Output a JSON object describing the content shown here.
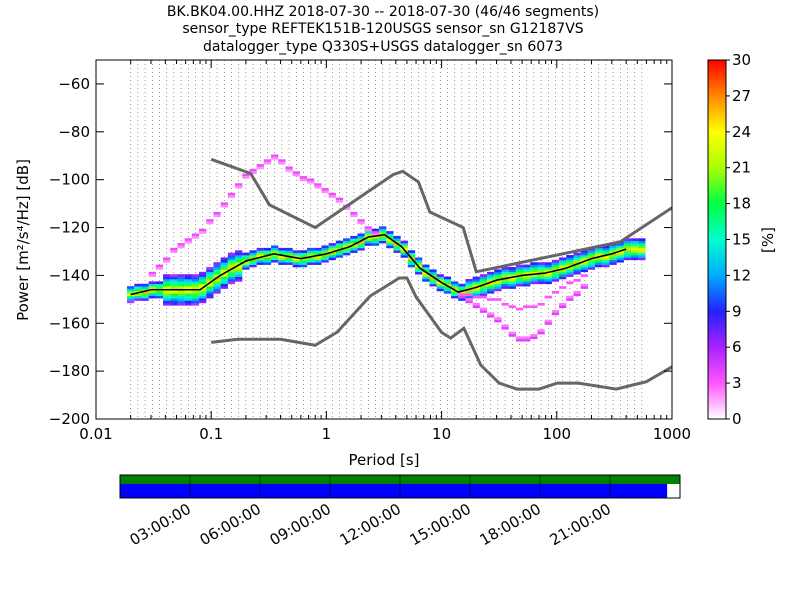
{
  "title_lines": [
    "BK.BK04.00.HHZ   2018-07-30 -- 2018-07-30  (46/46 segments)",
    "sensor_type REFTEK151B-120USGS sensor_sn G12187VS",
    "datalogger_type Q330S+USGS datalogger_sn 6073"
  ],
  "chart_data": [
    {
      "type": "heatmap",
      "subtype": "probabilistic power spectral density",
      "xlabel": "Period [s]",
      "ylabel": "Power [m²/s⁴/Hz] [dB]",
      "x_scale": "log",
      "xlim": [
        0.01,
        1000
      ],
      "ylim": [
        -200,
        -50
      ],
      "grid": "dotted vertical lines at each period bin",
      "x_tick_labels": [
        "0.01",
        "0.1",
        "1",
        "10",
        "100",
        "1000"
      ],
      "x_tick_values": [
        0.01,
        0.1,
        1,
        10,
        100,
        1000
      ],
      "y_tick_values": [
        -200,
        -180,
        -160,
        -140,
        -120,
        -100,
        -80,
        -60
      ],
      "y_tick_labels": [
        "−200",
        "−180",
        "−160",
        "−140",
        "−120",
        "−100",
        "−80",
        "−60"
      ],
      "colorbar": {
        "label": "[%]",
        "range": [
          0,
          30
        ],
        "ticks": [
          0,
          3,
          6,
          9,
          12,
          15,
          18,
          21,
          24,
          27,
          30
        ],
        "colormap": [
          "#ffffff",
          "#ff55ff",
          "#aa22ff",
          "#2222ff",
          "#00aaff",
          "#00ffcc",
          "#00ff44",
          "#aaff00",
          "#ffff00",
          "#ff8800",
          "#ff0000"
        ]
      },
      "noise_models": {
        "color": "#666666",
        "high": {
          "x": [
            0.1,
            0.22,
            0.32,
            0.8,
            3.8,
            4.6,
            6.3,
            7.9,
            15.4,
            20,
            354.8,
            10000
          ],
          "y": [
            -91.5,
            -97.4,
            -110.5,
            -120.0,
            -97.9,
            -96.5,
            -101.0,
            -113.5,
            -120.0,
            -138.5,
            -126.0,
            -80.1
          ]
        },
        "low": {
          "x": [
            0.1,
            0.17,
            0.4,
            0.8,
            1.24,
            2.4,
            4.3,
            5.0,
            6.0,
            10.0,
            12.0,
            15.6,
            21.9,
            31.6,
            45.0,
            70.0,
            101.0,
            154.0,
            328.0,
            600.0,
            1000.0
          ],
          "y": [
            -168.0,
            -166.7,
            -166.7,
            -169.2,
            -163.7,
            -148.6,
            -141.1,
            -141.1,
            -149.0,
            -163.8,
            -166.2,
            -162.1,
            -177.5,
            -185.0,
            -187.5,
            -187.5,
            -185.0,
            -185.0,
            -187.5,
            -184.4,
            -178.2
          ]
        }
      },
      "mode_line": {
        "color": "#000000",
        "x": [
          0.02,
          0.03,
          0.05,
          0.08,
          0.12,
          0.2,
          0.35,
          0.6,
          1.0,
          1.6,
          2.3,
          3.2,
          4.5,
          6.5,
          10,
          14,
          20,
          30,
          50,
          80,
          120,
          200,
          300,
          400
        ],
        "y": [
          -148,
          -146,
          -146,
          -146,
          -140,
          -134,
          -131,
          -133,
          -131,
          -128,
          -124,
          -123,
          -128,
          -137,
          -143,
          -147,
          -145,
          -142,
          -140,
          -139,
          -137,
          -133,
          -131,
          -129
        ]
      },
      "upper_branch": {
        "x": [
          0.03,
          0.05,
          0.08,
          0.12,
          0.2,
          0.35,
          0.6,
          1.0,
          1.6,
          2.3,
          3.0
        ],
        "y": [
          -140,
          -128,
          -122,
          -112,
          -98,
          -90,
          -98,
          -104,
          -112,
          -120,
          -123
        ]
      },
      "lower_branch": {
        "x": [
          14,
          20,
          30,
          40,
          50,
          70,
          100,
          150,
          200
        ],
        "y": [
          -148,
          -153,
          -158,
          -165,
          -168,
          -165,
          -155,
          -148,
          -142
        ]
      }
    },
    {
      "type": "timeline",
      "description": "data availability bar",
      "tick_labels": [
        "03:00:00",
        "06:00:00",
        "09:00:00",
        "12:00:00",
        "15:00:00",
        "18:00:00",
        "21:00:00"
      ],
      "hours": [
        3,
        6,
        9,
        12,
        15,
        18,
        21
      ],
      "range_hours": [
        0,
        24
      ],
      "available_color": "#008000",
      "coverage_color": "#0000ff",
      "coverage_fraction": 0.977
    }
  ]
}
